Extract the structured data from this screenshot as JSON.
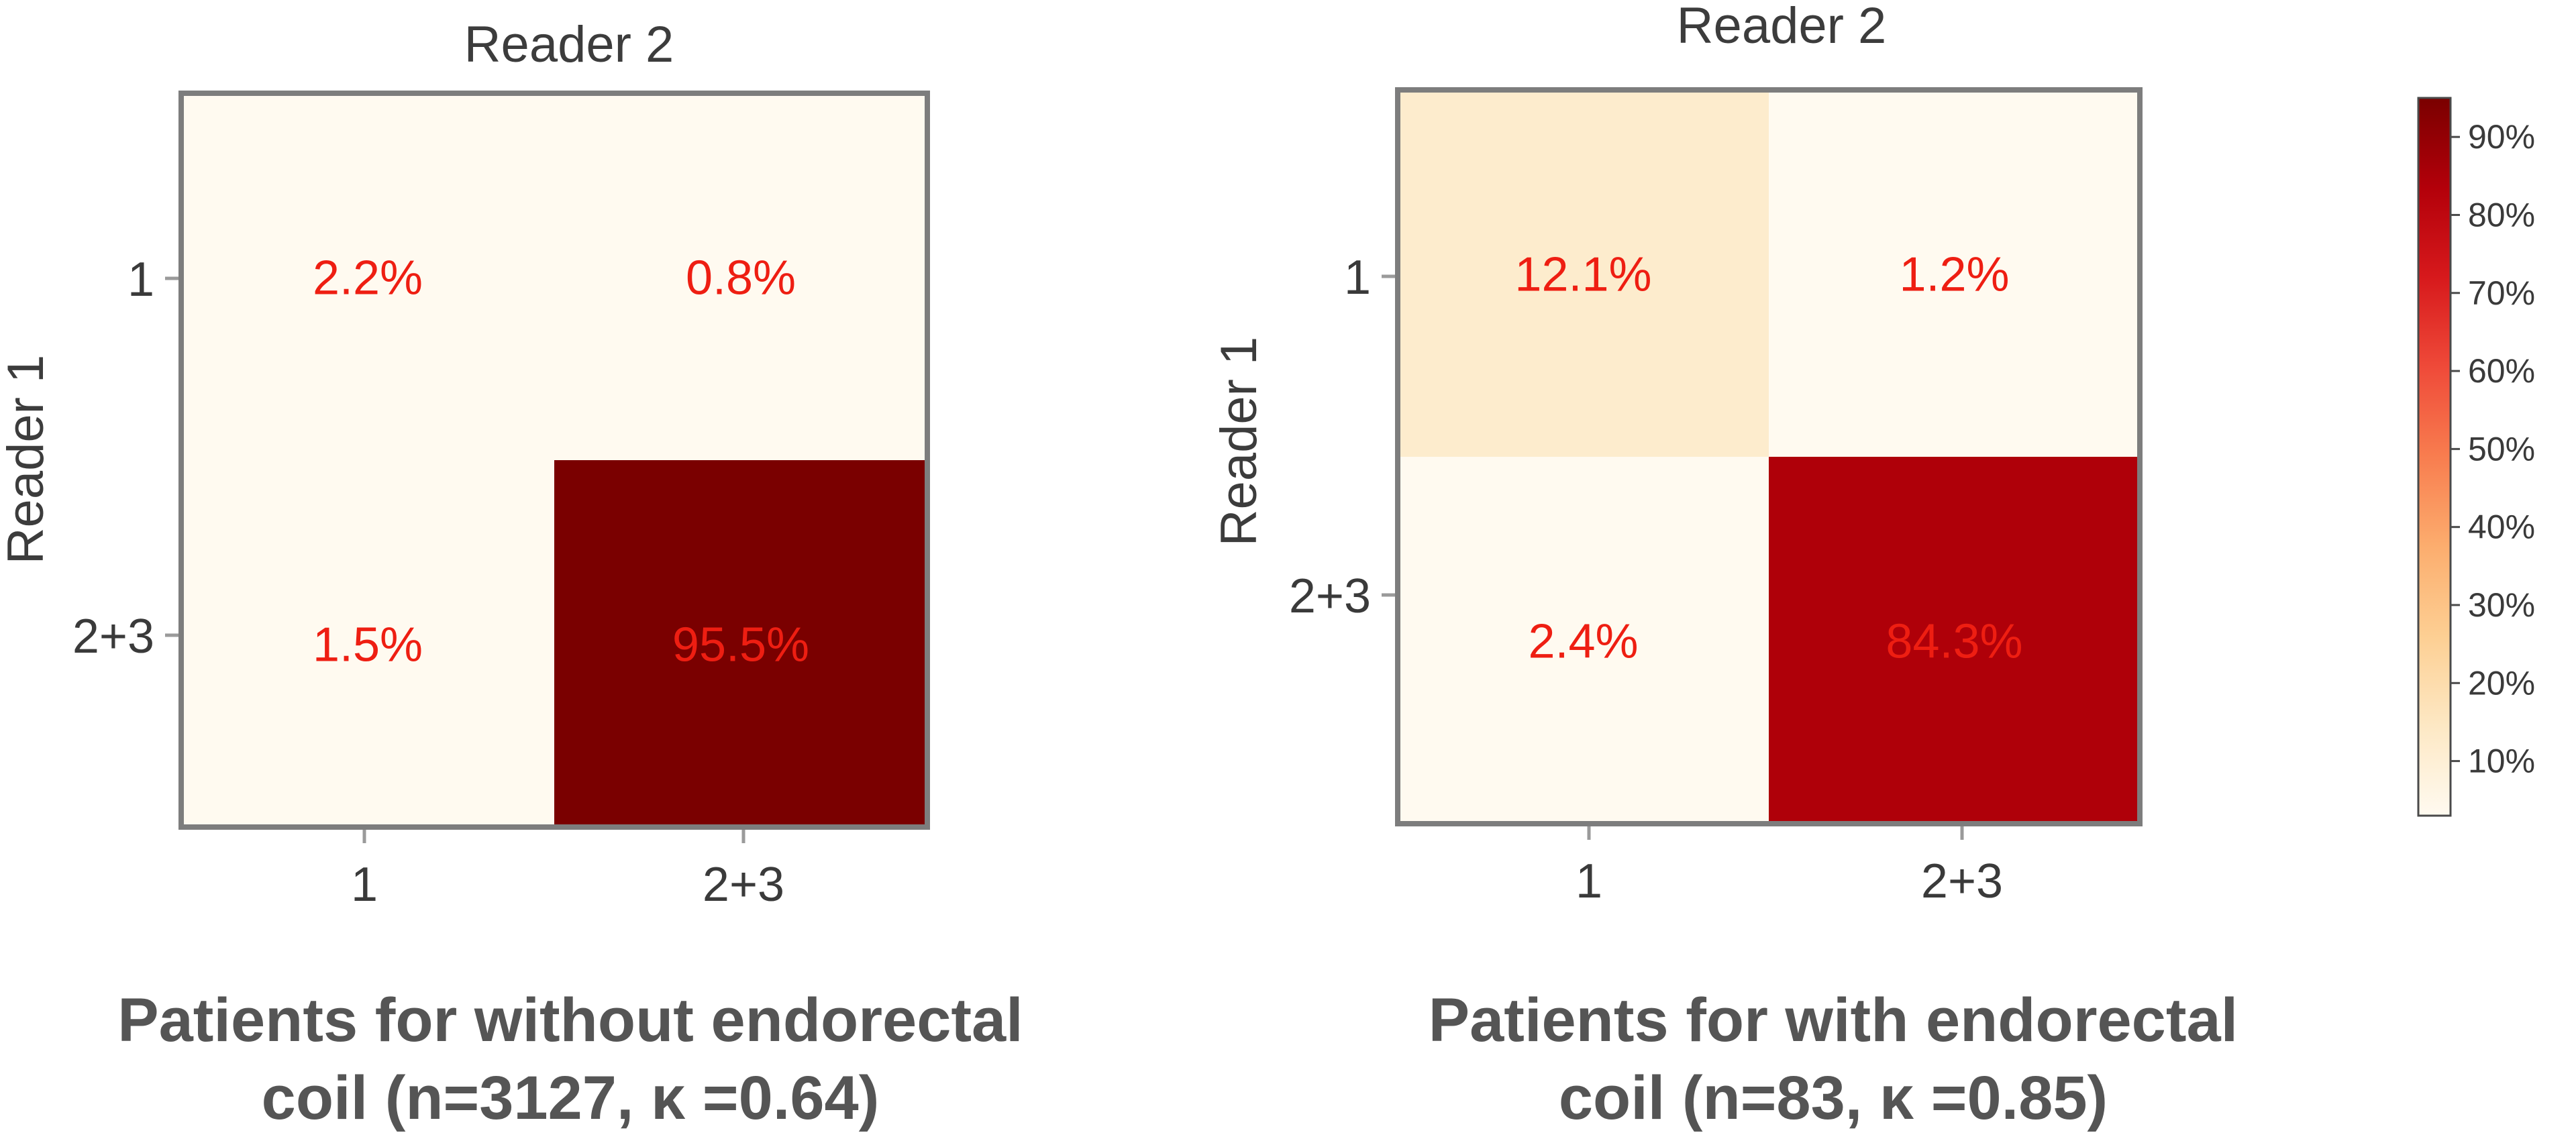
{
  "chart_data": [
    {
      "type": "heatmap",
      "title": "Reader 2",
      "ylabel": "Reader 1",
      "xlabel": "",
      "x_categories": [
        "1",
        "2+3"
      ],
      "y_categories": [
        "1",
        "2+3"
      ],
      "values": [
        [
          2.2,
          0.8
        ],
        [
          1.5,
          95.5
        ]
      ],
      "cell_labels": [
        [
          "2.2%",
          "0.8%"
        ],
        [
          "1.5%",
          "95.5%"
        ]
      ],
      "caption_line1": "Patients for without endorectal",
      "caption_line2": "coil  (n=3127, κ =0.64)"
    },
    {
      "type": "heatmap",
      "title": "Reader 2",
      "ylabel": "Reader 1",
      "xlabel": "",
      "x_categories": [
        "1",
        "2+3"
      ],
      "y_categories": [
        "1",
        "2+3"
      ],
      "values": [
        [
          12.1,
          1.2
        ],
        [
          2.4,
          84.3
        ]
      ],
      "cell_labels": [
        [
          "12.1%",
          "1.2%"
        ],
        [
          "2.4%",
          "84.3%"
        ]
      ],
      "caption_line1": "Patients for with endorectal",
      "caption_line2": "coil  (n=83, κ =0.85)"
    }
  ],
  "colorbar": {
    "range": [
      3,
      95
    ],
    "ticks": [
      "10%",
      "20%",
      "30%",
      "40%",
      "50%",
      "60%",
      "70%",
      "80%",
      "90%"
    ],
    "tick_values": [
      10,
      20,
      30,
      40,
      50,
      60,
      70,
      80,
      90
    ],
    "colormap": [
      "#fffaf0",
      "#fde8c4",
      "#fdcf93",
      "#fcad6e",
      "#f87d4f",
      "#ef4a39",
      "#d7191c",
      "#b3000a",
      "#7a0000"
    ]
  },
  "colors": {
    "cell_text": "#ee1e12",
    "frame": "#7d7d7d"
  }
}
